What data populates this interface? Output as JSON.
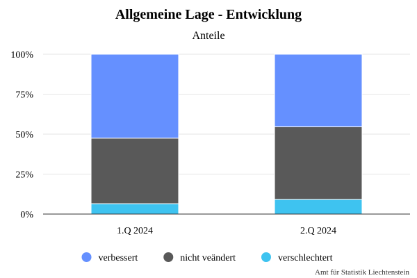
{
  "chart_data": {
    "type": "bar",
    "stacked": true,
    "title": "Allgemeine Lage - Entwicklung",
    "subtitle": "Anteile",
    "categories": [
      "1.Q 2024",
      "2.Q 2024"
    ],
    "series": [
      {
        "name": "verschlechtert",
        "color": "#3ec3f0",
        "values": [
          6.5,
          9.2
        ]
      },
      {
        "name": "nicht veändert",
        "color": "#595959",
        "values": [
          41.0,
          45.4
        ]
      },
      {
        "name": "verbessert",
        "color": "#6590ff",
        "values": [
          52.5,
          45.4
        ]
      }
    ],
    "ylim": [
      0,
      100
    ],
    "yticks": [
      "0%",
      "25%",
      "50%",
      "75%",
      "100%"
    ],
    "grid": true,
    "legend_position": "bottom",
    "legend_order": [
      "verbessert",
      "nicht veändert",
      "verschlechtert"
    ]
  },
  "credit": "Amt für Statistik Liechtenstein"
}
